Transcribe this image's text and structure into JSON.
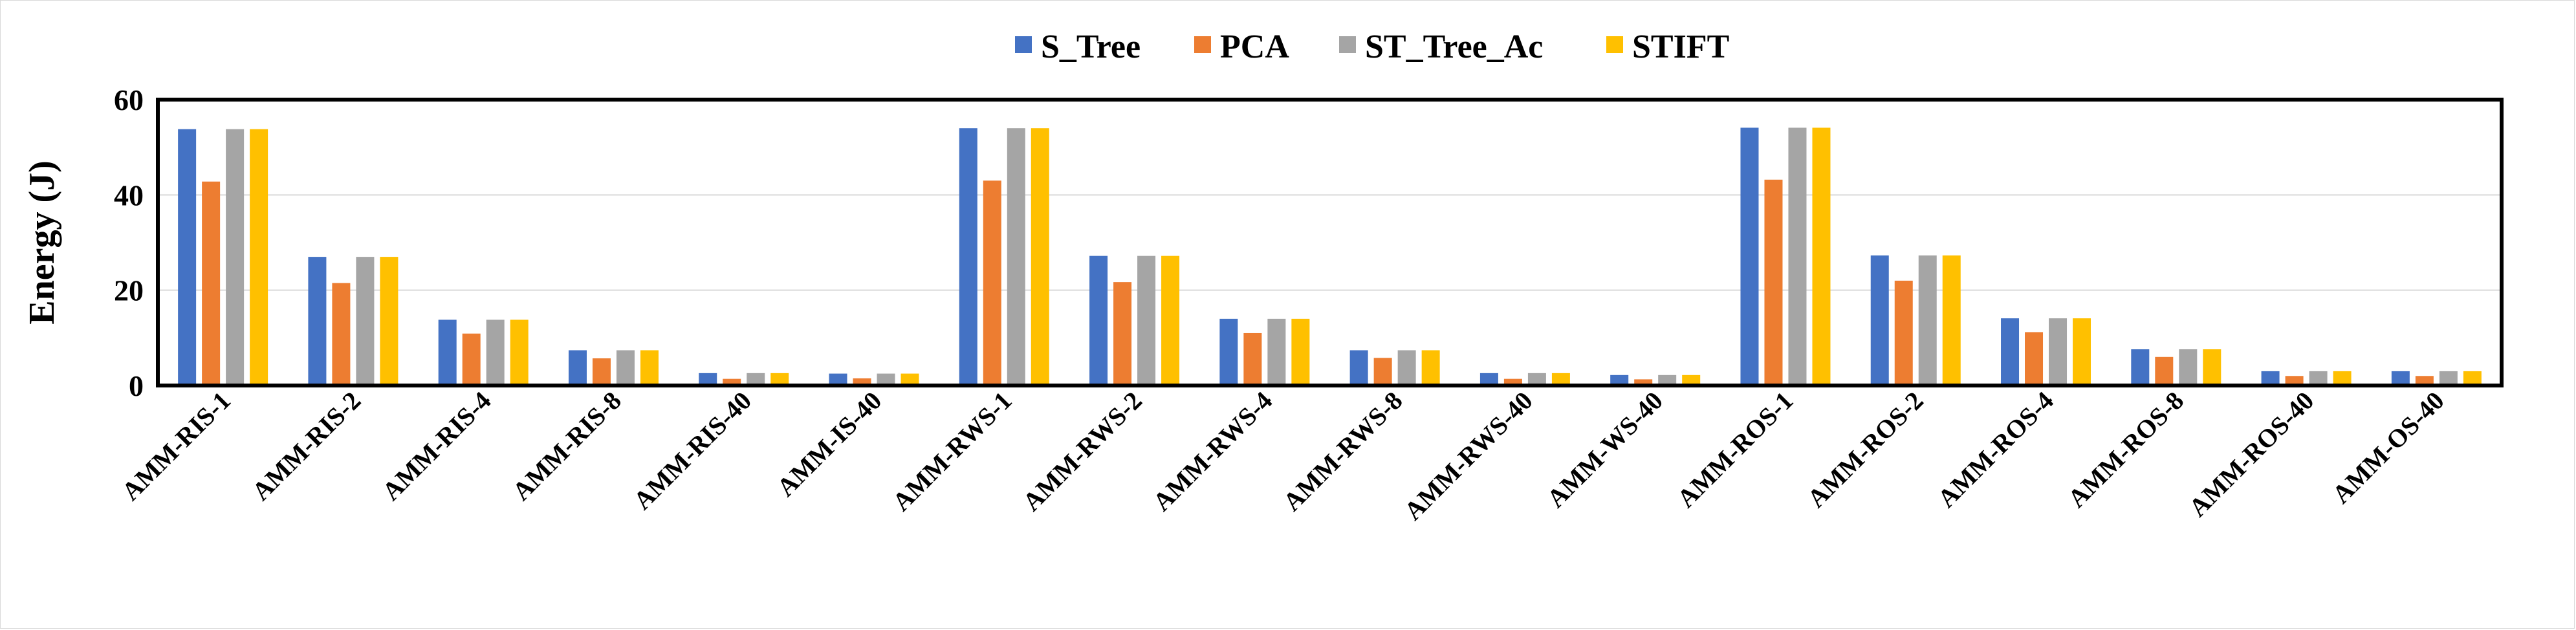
{
  "chart_data": {
    "type": "bar",
    "title": "",
    "xlabel": "",
    "ylabel": "Energy (J)",
    "ylim": [
      0,
      60
    ],
    "yticks": [
      0,
      20,
      40,
      60
    ],
    "grid": true,
    "legend_position": "top",
    "categories": [
      "AMM-RIS-1",
      "AMM-RIS-2",
      "AMM-RIS-4",
      "AMM-RIS-8",
      "AMM-RIS-40",
      "AMM-IS-40",
      "AMM-RWS-1",
      "AMM-RWS-2",
      "AMM-RWS-4",
      "AMM-RWS-8",
      "AMM-RWS-40",
      "AMM-WS-40",
      "AMM-ROS-1",
      "AMM-ROS-2",
      "AMM-ROS-4",
      "AMM-ROS-8",
      "AMM-ROS-40",
      "AMM-OS-40"
    ],
    "series": [
      {
        "name": "S_Tree",
        "color": "#4472C4",
        "values": [
          53.8,
          27.0,
          13.8,
          7.4,
          2.6,
          2.5,
          54.0,
          27.2,
          14.0,
          7.4,
          2.6,
          2.2,
          54.1,
          27.3,
          14.1,
          7.6,
          3.0,
          3.0
        ]
      },
      {
        "name": "PCA",
        "color": "#ED7D31",
        "values": [
          42.8,
          21.5,
          10.9,
          5.7,
          1.4,
          1.5,
          43.0,
          21.7,
          11.0,
          5.8,
          1.4,
          1.3,
          43.2,
          22.0,
          11.2,
          6.0,
          2.0,
          2.0
        ]
      },
      {
        "name": "ST_Tree_Ac",
        "color": "#A5A5A5",
        "values": [
          53.8,
          27.0,
          13.8,
          7.4,
          2.6,
          2.5,
          54.0,
          27.2,
          14.0,
          7.4,
          2.6,
          2.2,
          54.1,
          27.3,
          14.1,
          7.6,
          3.0,
          3.0
        ]
      },
      {
        "name": "STIFT",
        "color": "#FFC000",
        "values": [
          53.8,
          27.0,
          13.8,
          7.4,
          2.6,
          2.5,
          54.0,
          27.2,
          14.0,
          7.4,
          2.6,
          2.2,
          54.1,
          27.3,
          14.1,
          7.6,
          3.0,
          3.0
        ]
      }
    ]
  }
}
